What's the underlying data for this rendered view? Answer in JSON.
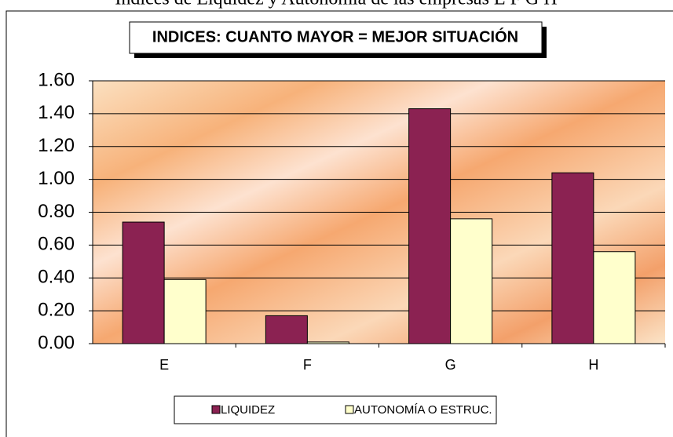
{
  "chart_data": {
    "type": "bar",
    "title": "Indices de Liquidez y Autonomía de las empresas  E F G H",
    "subtitle": "INDICES: CUANTO MAYOR = MEJOR SITUACIÓN",
    "categories": [
      "E",
      "F",
      "G",
      "H"
    ],
    "series": [
      {
        "name": "LIQUIDEZ",
        "color": "#8b2252",
        "values": [
          0.74,
          0.17,
          1.43,
          1.04
        ]
      },
      {
        "name": "AUTONOMÍA O ESTRUC.",
        "color": "#ffffcc",
        "values": [
          0.39,
          0.01,
          0.76,
          0.56
        ]
      }
    ],
    "ylim": [
      0,
      1.6
    ],
    "yticks": [
      {
        "value": 0,
        "label": "0.00"
      },
      {
        "value": 0.2,
        "label": "0.20"
      },
      {
        "value": 0.4,
        "label": "0.40"
      },
      {
        "value": 0.6,
        "label": "0.60"
      },
      {
        "value": 0.8,
        "label": "0.80"
      },
      {
        "value": 1.0,
        "label": "1.00"
      },
      {
        "value": 1.2,
        "label": "1.20"
      },
      {
        "value": 1.4,
        "label": "1.40"
      },
      {
        "value": 1.6,
        "label": "1.60"
      }
    ],
    "grid": true,
    "legend": "bottom"
  }
}
